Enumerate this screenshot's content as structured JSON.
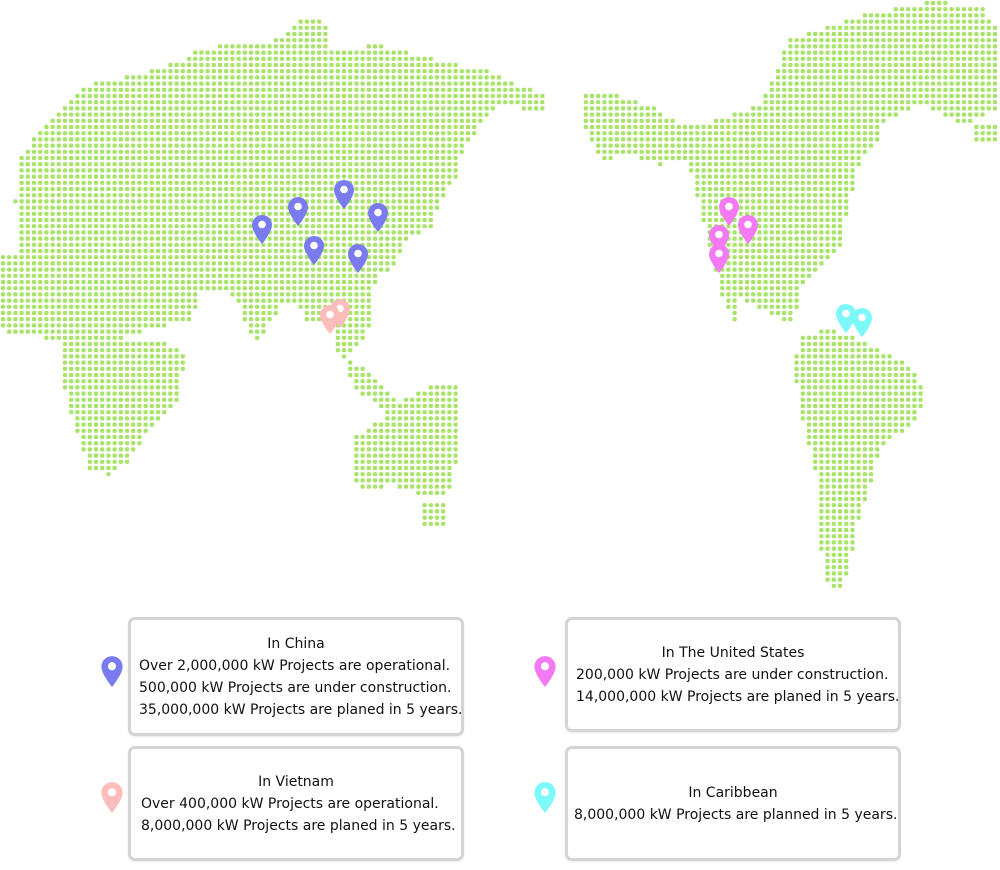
{
  "map": {
    "dot_color": "#a8e46a",
    "regions": [
      {
        "name": "China",
        "color": "#7b7bf0",
        "title": "In China",
        "lines": [
          "Over 2,000,000 kW Projects are operational.",
          "500,000 kW Projects are under construction.",
          "35,000,000 kW Projects are planed in 5 years."
        ],
        "site_count": 6
      },
      {
        "name": "Vietnam",
        "color": "#fcbcbc",
        "title": "In Vietnam",
        "lines": [
          "Over 400,000 kW Projects are operational.",
          "8,000,000 kW Projects are planed in 5 years."
        ],
        "site_count": 2
      },
      {
        "name": "The United States",
        "color": "#f37af3",
        "title": "In The United States",
        "lines": [
          "200,000 kW Projects are under construction.",
          "14,000,000 kW Projects are planed in 5 years."
        ],
        "site_count": 4
      },
      {
        "name": "Caribbean",
        "color": "#7df8f8",
        "title": "In Caribbean",
        "lines": [
          "8,000,000 kW Projects are planned in 5 years."
        ],
        "site_count": 2
      }
    ]
  }
}
